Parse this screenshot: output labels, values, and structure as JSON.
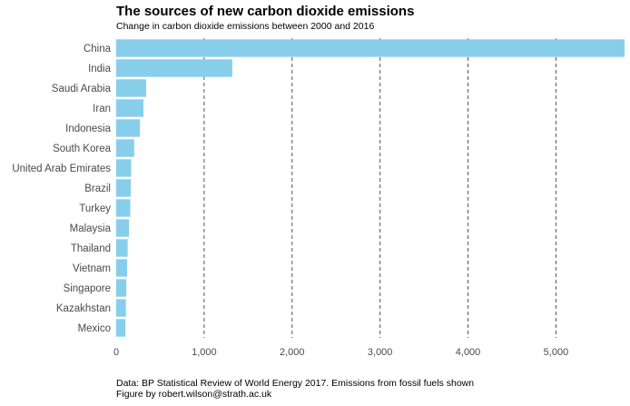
{
  "colors": {
    "bar": "#87ceeb",
    "gridline": "#555555",
    "text": "#4a4a4a"
  },
  "chart_data": {
    "type": "bar",
    "orientation": "horizontal",
    "title": "The sources of new carbon dioxide emissions",
    "subtitle": "Change in carbon dioxide emissions between 2000 and 2016",
    "xlabel": "",
    "ylabel": "",
    "categories": [
      "China",
      "India",
      "Saudi Arabia",
      "Iran",
      "Indonesia",
      "South Korea",
      "United Arab Emirates",
      "Brazil",
      "Turkey",
      "Malaysia",
      "Thailand",
      "Vietnam",
      "Singapore",
      "Kazakhstan",
      "Mexico"
    ],
    "values": [
      5780,
      1320,
      340,
      310,
      270,
      205,
      170,
      165,
      160,
      145,
      130,
      125,
      115,
      110,
      105
    ],
    "xlim": [
      0,
      5780
    ],
    "xticks": [
      0,
      1000,
      2000,
      3000,
      4000,
      5000
    ],
    "xtick_labels": [
      "0",
      "1,000",
      "2,000",
      "3,000",
      "4,000",
      "5,000"
    ],
    "grid": "vertical dashed",
    "legend": "none"
  },
  "caption": {
    "line1": "Data: BP Statistical Review of World Energy 2017. Emissions from fossil fuels shown",
    "line2": "Figure by robert.wilson@strath.ac.uk"
  }
}
